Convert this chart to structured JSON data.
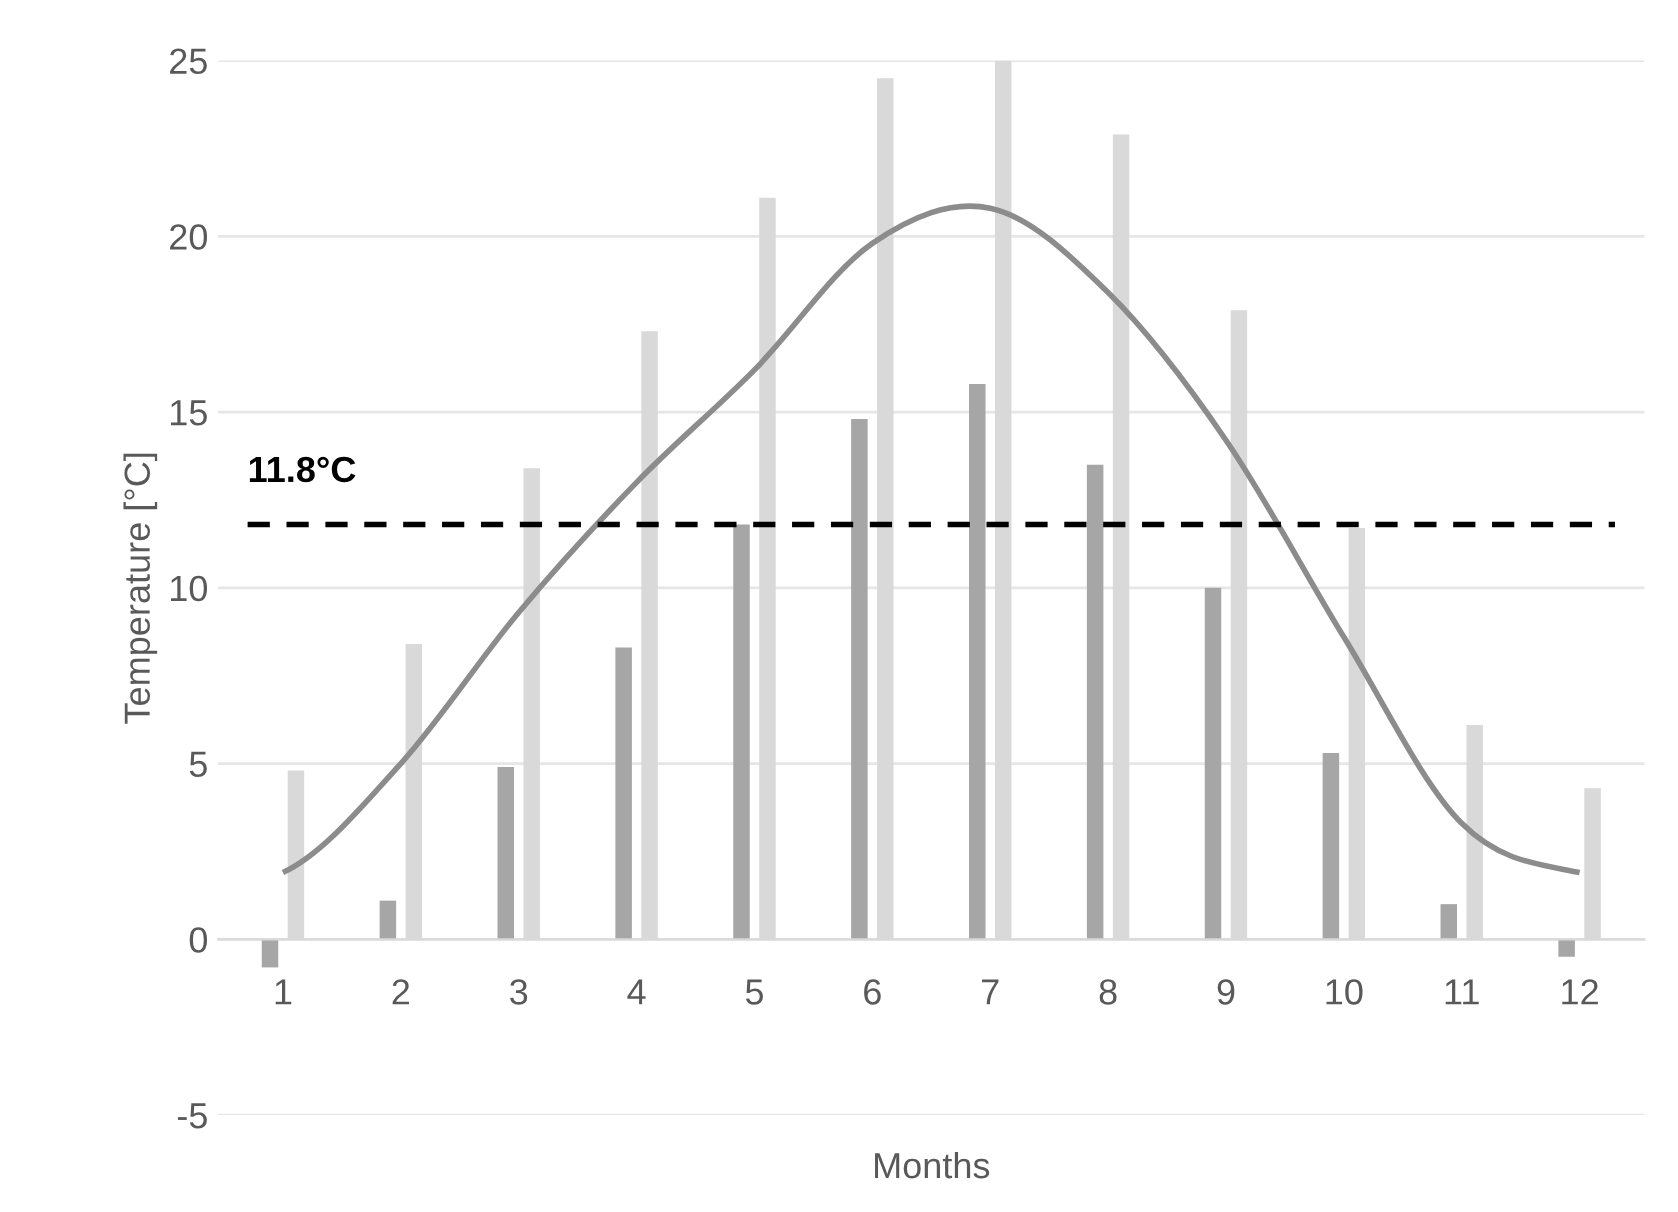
{
  "chart_data": {
    "type": "bar",
    "xlabel": "Months",
    "ylabel": "Temperature [°C]",
    "categories": [
      "1",
      "2",
      "3",
      "4",
      "5",
      "6",
      "7",
      "8",
      "9",
      "10",
      "11",
      "12"
    ],
    "series": [
      {
        "color": "#a6a6a6",
        "values": [
          -0.8,
          1.1,
          4.9,
          8.3,
          11.8,
          14.8,
          15.8,
          13.5,
          10.0,
          5.3,
          1.0,
          -0.5
        ]
      },
      {
        "color": "#d9d9d9",
        "values": [
          4.8,
          8.4,
          13.4,
          17.3,
          21.1,
          24.5,
          25.0,
          22.9,
          17.9,
          11.7,
          6.1,
          4.3
        ]
      },
      {
        "type": "line",
        "color": "#8c8c8c",
        "values": [
          1.9,
          5.0,
          9.3,
          13.0,
          16.2,
          19.8,
          20.8,
          18.4,
          14.2,
          8.6,
          3.3,
          1.9
        ]
      }
    ],
    "ref_lines": [
      {
        "axis": "y",
        "value": 11.8,
        "label": "11.8°C",
        "color": "#000000",
        "line_style": "dashed"
      }
    ],
    "ylim": [
      -5,
      25
    ],
    "yticks": [
      -5,
      0,
      5,
      10,
      15,
      20,
      25
    ],
    "grid": "y",
    "legend": false
  }
}
